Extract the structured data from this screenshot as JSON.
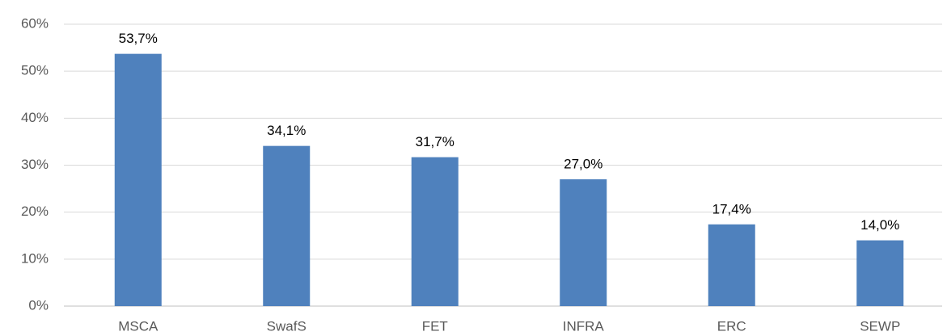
{
  "chart_data": {
    "type": "bar",
    "categories": [
      "MSCA",
      "SwafS",
      "FET",
      "INFRA",
      "ERC",
      "SEWP"
    ],
    "values": [
      53.7,
      34.1,
      31.7,
      27.0,
      17.4,
      14.0
    ],
    "value_labels": [
      "53,7%",
      "34,1%",
      "31,7%",
      "27,0%",
      "17,4%",
      "14,0%"
    ],
    "color": "#4f81bd",
    "ylim": [
      0,
      60
    ],
    "yticks": [
      {
        "value": 0,
        "label": "0%"
      },
      {
        "value": 10,
        "label": "10%"
      },
      {
        "value": 20,
        "label": "20%"
      },
      {
        "value": 30,
        "label": "30%"
      },
      {
        "value": 40,
        "label": "40%"
      },
      {
        "value": 50,
        "label": "50%"
      },
      {
        "value": 60,
        "label": "60%"
      }
    ],
    "grid": true
  }
}
